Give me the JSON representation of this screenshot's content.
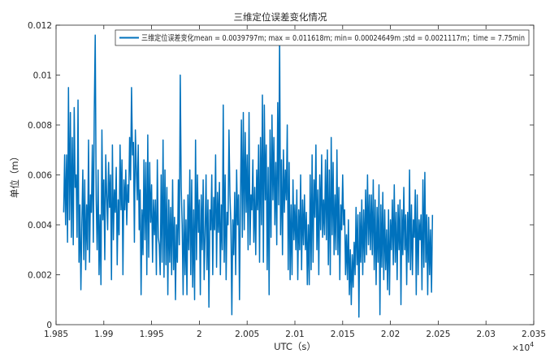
{
  "chart_data": {
    "type": "line",
    "title": "三维定位误差变化情况",
    "xlabel": "UTC（s）",
    "ylabel": "单位（m）",
    "x_exponent_label": "×10",
    "x_exponent_power": "4",
    "x_scale_factor": 10000,
    "xlim": [
      1.985,
      2.035
    ],
    "ylim": [
      0,
      0.012
    ],
    "x_ticks": [
      1.985,
      1.99,
      1.995,
      2.0,
      2.005,
      2.01,
      2.015,
      2.02,
      2.025,
      2.03,
      2.035
    ],
    "x_tick_labels": [
      "1.985",
      "1.99",
      "1.995",
      "2",
      "2.005",
      "2.01",
      "2.015",
      "2.02",
      "2.025",
      "2.03",
      "2.035"
    ],
    "y_ticks": [
      0,
      0.002,
      0.004,
      0.006,
      0.008,
      0.01,
      0.012
    ],
    "y_tick_labels": [
      "0",
      "0.002",
      "0.004",
      "0.006",
      "0.008",
      "0.01",
      "0.012"
    ],
    "grid": false,
    "legend_position": "top-right",
    "series": [
      {
        "name": "三维定位误差变化mean = 0.0039797m; max = 0.011618m; min= 0.00024649m ;std = 0.0021117m；time = 7.75min",
        "color": "#0072BD",
        "x_start": 1.9858,
        "x_step": 0.0001,
        "values": [
          0.0045,
          0.0068,
          0.004,
          0.0068,
          0.0033,
          0.0095,
          0.0042,
          0.0085,
          0.0035,
          0.0075,
          0.0032,
          0.0087,
          0.0055,
          0.006,
          0.0035,
          0.009,
          0.0025,
          0.0048,
          0.0014,
          0.004,
          0.0062,
          0.0026,
          0.0058,
          0.0022,
          0.0048,
          0.003,
          0.0074,
          0.0025,
          0.0052,
          0.0045,
          0.0072,
          0.0033,
          0.0085,
          0.0116,
          0.005,
          0.003,
          0.0062,
          0.002,
          0.0044,
          0.0016,
          0.0078,
          0.0042,
          0.0058,
          0.0026,
          0.0068,
          0.0052,
          0.0038,
          0.0065,
          0.0047,
          0.006,
          0.0018,
          0.0072,
          0.0034,
          0.0054,
          0.0045,
          0.0063,
          0.0024,
          0.005,
          0.0036,
          0.0072,
          0.0046,
          0.0066,
          0.002,
          0.0058,
          0.0046,
          0.0062,
          0.004,
          0.0056,
          0.0049,
          0.0075,
          0.0058,
          0.0095,
          0.0068,
          0.0073,
          0.0033,
          0.0078,
          0.0063,
          0.005,
          0.0072,
          0.0038,
          0.0054,
          0.0012,
          0.0046,
          0.0028,
          0.0066,
          0.0034,
          0.0065,
          0.002,
          0.0076,
          0.0027,
          0.0065,
          0.0041,
          0.0056,
          0.0025,
          0.005,
          0.0036,
          0.005,
          0.002,
          0.0066,
          0.0035,
          0.0032,
          0.002,
          0.006,
          0.0025,
          0.0074,
          0.0019,
          0.0062,
          0.0024,
          0.0055,
          0.0012,
          0.005,
          0.0025,
          0.0047,
          0.002,
          0.0058,
          0.0022,
          0.0043,
          0.001,
          0.004,
          0.0025,
          0.0058,
          0.0032,
          0.01,
          0.0055,
          0.004,
          0.0012,
          0.005,
          0.002,
          0.0042,
          0.0012,
          0.0052,
          0.003,
          0.0062,
          0.002,
          0.0058,
          0.0015,
          0.0046,
          0.001,
          0.0074,
          0.0026,
          0.006,
          0.0037,
          0.005,
          0.0012,
          0.0052,
          0.003,
          0.0058,
          0.0018,
          0.0036,
          0.006,
          0.0022,
          0.005,
          0.0007,
          0.0046,
          0.0038,
          0.006,
          0.002,
          0.0051,
          0.0038,
          0.0068,
          0.0023,
          0.0053,
          0.0037,
          0.0057,
          0.002,
          0.0048,
          0.003,
          0.0088,
          0.0025,
          0.006,
          0.0018,
          0.0045,
          0.004,
          0.0078,
          0.0052,
          0.004,
          0.0004,
          0.0042,
          0.0028,
          0.0053,
          0.002,
          0.0062,
          0.004,
          0.0052,
          0.001,
          0.005,
          0.0082,
          0.0035,
          0.0085,
          0.0038,
          0.0077,
          0.0045,
          0.0068,
          0.003,
          0.0085,
          0.0032,
          0.0052,
          0.0046,
          0.0066,
          0.0033,
          0.0055,
          0.0028,
          0.0062,
          0.0046,
          0.0072,
          0.0025,
          0.0075,
          0.004,
          0.0092,
          0.0025,
          0.0088,
          0.005,
          0.0072,
          0.0022,
          0.0063,
          0.0012,
          0.0078,
          0.0035,
          0.0084,
          0.005,
          0.0075,
          0.004,
          0.0065,
          0.0032,
          0.0089,
          0.0048,
          0.0116,
          0.0036,
          0.0066,
          0.0028,
          0.007,
          0.0045,
          0.0062,
          0.005,
          0.008,
          0.0022,
          0.0065,
          0.0018,
          0.0048,
          0.002,
          0.0058,
          0.0034,
          0.0048,
          0.003,
          0.0054,
          0.0018,
          0.0046,
          0.003,
          0.006,
          0.0022,
          0.005,
          0.0032,
          0.0052,
          0.003,
          0.0045,
          0.0016,
          0.004,
          0.0016,
          0.006,
          0.0022,
          0.0068,
          0.0025,
          0.0058,
          0.0043,
          0.0072,
          0.003,
          0.0054,
          0.002,
          0.006,
          0.0038,
          0.0068,
          0.0035,
          0.005,
          0.0036,
          0.0066,
          0.0034,
          0.007,
          0.0024,
          0.0062,
          0.002,
          0.0075,
          0.0036,
          0.0065,
          0.0028,
          0.0052,
          0.003,
          0.007,
          0.0028,
          0.0055,
          0.0018,
          0.0048,
          0.0038,
          0.006,
          0.004,
          0.0046,
          0.002,
          0.0036,
          0.0018,
          0.0042,
          0.0012,
          0.003,
          0.0008,
          0.0028,
          0.0015,
          0.0033,
          0.002,
          0.0047,
          0.0024,
          0.0044,
          0.0003,
          0.0045,
          0.0025,
          0.005,
          0.002,
          0.0046,
          0.0025,
          0.0054,
          0.0028,
          0.006,
          0.0032,
          0.0052,
          0.003,
          0.0052,
          0.0028,
          0.0058,
          0.0022,
          0.005,
          0.0016,
          0.0047,
          0.0025,
          0.0056,
          0.0004,
          0.0048,
          0.0023,
          0.0053,
          0.0018,
          0.0046,
          0.0022,
          0.0038,
          0.0014,
          0.0046,
          0.0012,
          0.0042,
          0.003,
          0.005,
          0.0024,
          0.0056,
          0.0025,
          0.0045,
          0.0018,
          0.0048,
          0.003,
          0.005,
          0.0008,
          0.0046,
          0.0028,
          0.0055,
          0.003,
          0.0044,
          0.0016,
          0.0045,
          0.0025,
          0.0062,
          0.0022,
          0.0048,
          0.002,
          0.0042,
          0.0035,
          0.0054,
          0.0012,
          0.0052,
          0.002,
          0.0042,
          0.0034,
          0.0044,
          0.0014,
          0.0058,
          0.0023,
          0.0061,
          0.0025,
          0.0044,
          0.0012,
          0.0043,
          0.002,
          0.0038,
          0.0013,
          0.0044
        ]
      }
    ]
  }
}
